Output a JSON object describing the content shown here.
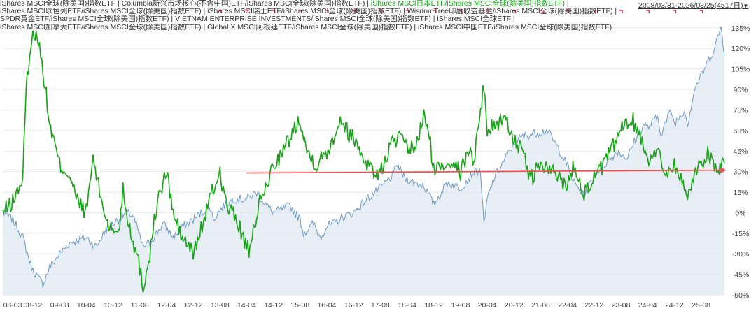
{
  "legend": {
    "line1": [
      {
        "text": "iShares MSCI全球(除美国)指数ETF",
        "highlight": false
      },
      {
        "text": " | ",
        "highlight": false
      },
      {
        "text": "Columbia新兴市场核心(不含中国)ETF/iShares MSCI全球(除美国)指数ETF)",
        "highlight": false
      },
      {
        "text": " | ",
        "highlight": false
      },
      {
        "text": "iShares MSCI日本ETF/iShares MSCI全球(除美国)指数ETF)",
        "highlight": true
      },
      {
        "text": " |",
        "highlight": false
      }
    ],
    "line2": "iShares MSCI以色列ETF/iShares MSCI全球(除美国)指数ETF) | iShares MSCI瑞士ETF/iShares MSCI全球(除美国)指数ETF) | WisdomTree印度收益基金/iShares MSCI全球(除美国)指数ETF) |",
    "line3": "SPDR黄金ETF/iShares MSCI全球(除美国)指数ETF) | VIETNAM ENTERPRISE INVESTMENTS/iShares MSCI全球(除美国)指数ETF) | iShares MSCI全球ETF |",
    "line4": "iShares MSCI加拿大ETF/iShares MSCI全球(除美国)指数ETF) | Global X MSCI阿根廷ETF/iShares MSCI全球(除美国)指数ETF) | iShares MSCI中国ETF/iShares MSCI全球(除美国)指数ETF) |"
  },
  "period": {
    "label": "2008/03/31-2026/03/25(4517日)",
    "arrow": "▼"
  },
  "colors": {
    "green_series": "#19a319",
    "blue_series": "#6e9bc6",
    "blue_fill": "#dfe8f1",
    "trend_line": "#f24b4b",
    "grid": "#e9e9e9",
    "axis_text": "#444444",
    "marker": "#e0304a"
  },
  "chart_data": {
    "type": "line",
    "title": "",
    "xlabel": "",
    "ylabel": "",
    "ylim": [
      -60,
      140
    ],
    "y_unit": "%",
    "y_ticks": [
      -60,
      -45,
      -30,
      -15,
      0,
      15,
      30,
      45,
      60,
      75,
      90,
      105,
      120,
      135
    ],
    "y_tick_labels": [
      "-60%",
      "-45%",
      "-30%",
      "-15%",
      "0%",
      "15%",
      "30%",
      "45%",
      "60%",
      "75%",
      "90%",
      "105%",
      "120%",
      "135%"
    ],
    "x_start": "2008-03",
    "x_end": "2026-03",
    "x_ticks": [
      "2008-03",
      "2008-12",
      "2009-08",
      "2010-04",
      "2010-12",
      "2011-08",
      "2012-04",
      "2012-12",
      "2013-08",
      "2014-04",
      "2014-12",
      "2015-08",
      "2016-04",
      "2016-12",
      "2017-08",
      "2018-04",
      "2018-12",
      "2019-08",
      "2020-04",
      "2020-12",
      "2021-08",
      "2022-04",
      "2022-12",
      "2023-08",
      "2024-04",
      "2024-12",
      "2025-08"
    ],
    "x_tick_labels": [
      "08-03",
      "08-12",
      "09-08",
      "10-04",
      "10-12",
      "11-08",
      "12-04",
      "12-12",
      "13-08",
      "14-04",
      "14-12",
      "15-08",
      "16-04",
      "16-12",
      "17-08",
      "18-04",
      "18-12",
      "19-08",
      "20-04",
      "20-12",
      "21-08",
      "22-04",
      "22-12",
      "23-08",
      "24-04",
      "24-12",
      "25-08"
    ],
    "grid": true,
    "legend_position": "top-left",
    "series": [
      {
        "color": "#19a319",
        "area": false,
        "points": [
          [
            "2008-03",
            0
          ],
          [
            "2008-06",
            8
          ],
          [
            "2008-09",
            25
          ],
          [
            "2008-10",
            90
          ],
          [
            "2008-11",
            115
          ],
          [
            "2008-12",
            128
          ],
          [
            "2009-01",
            135
          ],
          [
            "2009-03",
            105
          ],
          [
            "2009-05",
            65
          ],
          [
            "2009-08",
            35
          ],
          [
            "2009-11",
            28
          ],
          [
            "2010-01",
            10
          ],
          [
            "2010-04",
            0
          ],
          [
            "2010-05",
            20
          ],
          [
            "2010-06",
            40
          ],
          [
            "2010-08",
            15
          ],
          [
            "2010-10",
            -5
          ],
          [
            "2010-12",
            -15
          ],
          [
            "2011-02",
            -10
          ],
          [
            "2011-03",
            20
          ],
          [
            "2011-04",
            0
          ],
          [
            "2011-06",
            -20
          ],
          [
            "2011-08",
            -40
          ],
          [
            "2011-09",
            -55
          ],
          [
            "2011-11",
            -30
          ],
          [
            "2012-01",
            5
          ],
          [
            "2012-04",
            30
          ],
          [
            "2012-06",
            0
          ],
          [
            "2012-08",
            -15
          ],
          [
            "2012-12",
            -30
          ],
          [
            "2013-02",
            -15
          ],
          [
            "2013-05",
            10
          ],
          [
            "2013-08",
            30
          ],
          [
            "2013-10",
            5
          ],
          [
            "2014-01",
            -5
          ],
          [
            "2014-04",
            -25
          ],
          [
            "2014-05",
            -30
          ],
          [
            "2014-07",
            0
          ],
          [
            "2014-10",
            20
          ],
          [
            "2014-12",
            35
          ],
          [
            "2015-03",
            45
          ],
          [
            "2015-06",
            60
          ],
          [
            "2015-08",
            70
          ],
          [
            "2015-10",
            45
          ],
          [
            "2016-01",
            35
          ],
          [
            "2016-04",
            45
          ],
          [
            "2016-06",
            55
          ],
          [
            "2016-08",
            70
          ],
          [
            "2016-10",
            60
          ],
          [
            "2016-12",
            55
          ],
          [
            "2017-03",
            40
          ],
          [
            "2017-06",
            30
          ],
          [
            "2017-08",
            28
          ],
          [
            "2017-11",
            50
          ],
          [
            "2018-02",
            55
          ],
          [
            "2018-04",
            45
          ],
          [
            "2018-07",
            50
          ],
          [
            "2018-09",
            72
          ],
          [
            "2018-11",
            50
          ],
          [
            "2018-12",
            30
          ],
          [
            "2019-03",
            35
          ],
          [
            "2019-06",
            40
          ],
          [
            "2019-08",
            28
          ],
          [
            "2019-10",
            45
          ],
          [
            "2019-12",
            40
          ],
          [
            "2020-01",
            55
          ],
          [
            "2020-02",
            75
          ],
          [
            "2020-03",
            95
          ],
          [
            "2020-04",
            60
          ],
          [
            "2020-07",
            65
          ],
          [
            "2020-09",
            70
          ],
          [
            "2020-12",
            55
          ],
          [
            "2021-03",
            40
          ],
          [
            "2021-05",
            25
          ],
          [
            "2021-08",
            35
          ],
          [
            "2021-11",
            30
          ],
          [
            "2022-02",
            25
          ],
          [
            "2022-04",
            20
          ],
          [
            "2022-06",
            35
          ],
          [
            "2022-09",
            15
          ],
          [
            "2022-12",
            25
          ],
          [
            "2023-03",
            35
          ],
          [
            "2023-06",
            50
          ],
          [
            "2023-08",
            60
          ],
          [
            "2023-11",
            70
          ],
          [
            "2024-02",
            55
          ],
          [
            "2024-04",
            40
          ],
          [
            "2024-07",
            45
          ],
          [
            "2024-09",
            30
          ],
          [
            "2024-12",
            35
          ],
          [
            "2025-02",
            25
          ],
          [
            "2025-04",
            10
          ],
          [
            "2025-06",
            30
          ],
          [
            "2025-08",
            35
          ],
          [
            "2025-10",
            45
          ],
          [
            "2026-01",
            30
          ],
          [
            "2026-03",
            36
          ]
        ]
      },
      {
        "color": "#6e9bc6",
        "area": true,
        "points": [
          [
            "2008-03",
            0
          ],
          [
            "2008-06",
            -5
          ],
          [
            "2008-09",
            -18
          ],
          [
            "2008-11",
            -35
          ],
          [
            "2008-12",
            -42
          ],
          [
            "2009-03",
            -52
          ],
          [
            "2009-05",
            -40
          ],
          [
            "2009-08",
            -30
          ],
          [
            "2009-11",
            -22
          ],
          [
            "2010-04",
            -18
          ],
          [
            "2010-07",
            -25
          ],
          [
            "2010-10",
            -12
          ],
          [
            "2011-04",
            0
          ],
          [
            "2011-06",
            -2
          ],
          [
            "2011-09",
            -25
          ],
          [
            "2011-11",
            -22
          ],
          [
            "2012-03",
            -8
          ],
          [
            "2012-06",
            -18
          ],
          [
            "2012-09",
            -10
          ],
          [
            "2012-12",
            -5
          ],
          [
            "2013-05",
            5
          ],
          [
            "2013-06",
            -5
          ],
          [
            "2013-09",
            5
          ],
          [
            "2013-12",
            10
          ],
          [
            "2014-04",
            10
          ],
          [
            "2014-07",
            15
          ],
          [
            "2014-10",
            5
          ],
          [
            "2014-12",
            0
          ],
          [
            "2015-03",
            3
          ],
          [
            "2015-05",
            5
          ],
          [
            "2015-08",
            -5
          ],
          [
            "2015-09",
            -15
          ],
          [
            "2015-12",
            -8
          ],
          [
            "2016-02",
            -18
          ],
          [
            "2016-04",
            -10
          ],
          [
            "2016-06",
            -8
          ],
          [
            "2016-09",
            -3
          ],
          [
            "2016-12",
            0
          ],
          [
            "2017-04",
            10
          ],
          [
            "2017-08",
            18
          ],
          [
            "2017-12",
            28
          ],
          [
            "2018-01",
            36
          ],
          [
            "2018-03",
            26
          ],
          [
            "2018-06",
            22
          ],
          [
            "2018-09",
            20
          ],
          [
            "2018-12",
            6
          ],
          [
            "2019-04",
            22
          ],
          [
            "2019-08",
            18
          ],
          [
            "2019-12",
            30
          ],
          [
            "2020-02",
            30
          ],
          [
            "2020-03",
            -10
          ],
          [
            "2020-04",
            10
          ],
          [
            "2020-06",
            25
          ],
          [
            "2020-09",
            38
          ],
          [
            "2020-12",
            50
          ],
          [
            "2021-02",
            55
          ],
          [
            "2021-06",
            58
          ],
          [
            "2021-10",
            60
          ],
          [
            "2021-12",
            52
          ],
          [
            "2022-03",
            40
          ],
          [
            "2022-06",
            22
          ],
          [
            "2022-09",
            12
          ],
          [
            "2022-12",
            28
          ],
          [
            "2023-03",
            35
          ],
          [
            "2023-07",
            45
          ],
          [
            "2023-10",
            40
          ],
          [
            "2023-12",
            52
          ],
          [
            "2024-03",
            65
          ],
          [
            "2024-04",
            62
          ],
          [
            "2024-07",
            70
          ],
          [
            "2024-08",
            58
          ],
          [
            "2024-11",
            75
          ],
          [
            "2024-12",
            65
          ],
          [
            "2025-03",
            75
          ],
          [
            "2025-04",
            65
          ],
          [
            "2025-06",
            90
          ],
          [
            "2025-09",
            105
          ],
          [
            "2025-12",
            120
          ],
          [
            "2026-02",
            136
          ],
          [
            "2026-03",
            115
          ]
        ]
      },
      {
        "color": "#f24b4b",
        "area": false,
        "points": [
          [
            "2014-04",
            29
          ],
          [
            "2026-03",
            31
          ]
        ]
      }
    ]
  }
}
